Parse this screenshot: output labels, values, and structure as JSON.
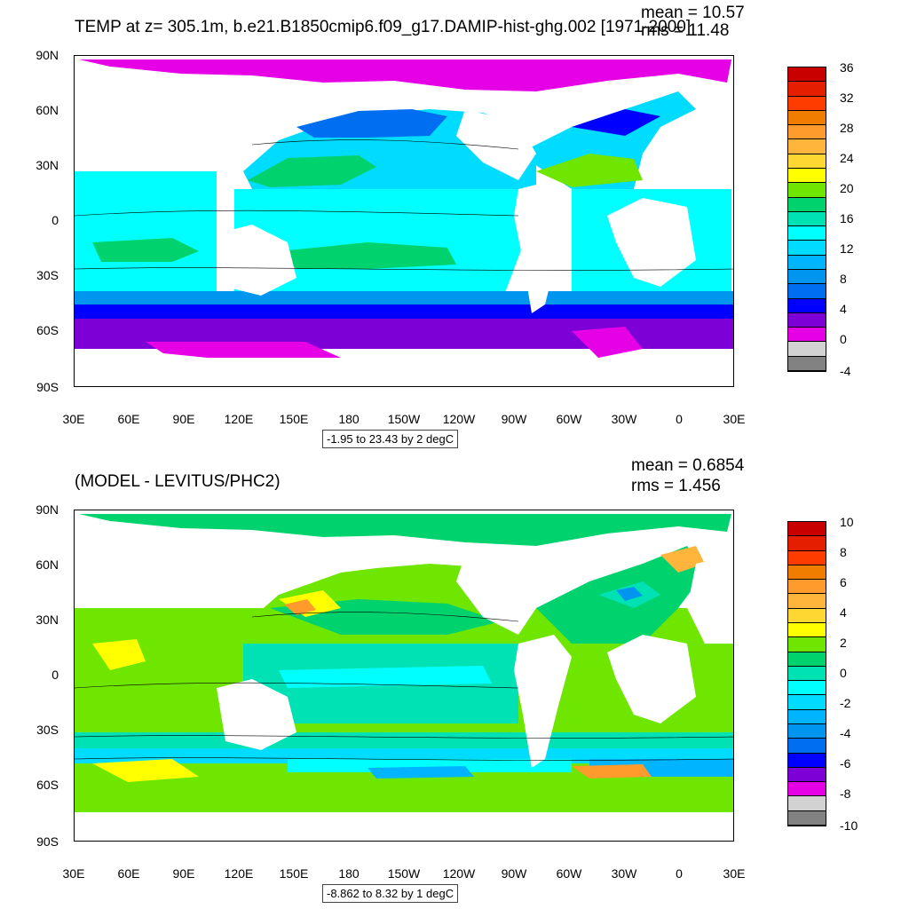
{
  "top": {
    "title": "TEMP at z= 305.1m, b.e21.B1850cmip6.f09_g17.DAMIP-hist-ghg.002 [1971-2000]",
    "mean_text": "mean = 10.57",
    "rms_text": "rms = 11.48",
    "range_text": "-1.95 to 23.43 by 2 degC",
    "colorbar": {
      "labels": [
        "36",
        "32",
        "28",
        "24",
        "20",
        "16",
        "12",
        "8",
        "4",
        "0",
        "-4"
      ],
      "colors": [
        "#c80000",
        "#e61e00",
        "#ff3c00",
        "#f07d00",
        "#ff9b2d",
        "#ffb43c",
        "#ffd732",
        "#ffff00",
        "#6ee600",
        "#00d26e",
        "#00e1b4",
        "#00ffff",
        "#00dcff",
        "#00b4ff",
        "#0096f0",
        "#006ef0",
        "#0000ff",
        "#7d00d7",
        "#e600e6",
        "#d2d2d2",
        "#828282"
      ]
    }
  },
  "bottom": {
    "title": "(MODEL - LEVITUS/PHC2)",
    "mean_text": "mean = 0.6854",
    "rms_text": "rms = 1.456",
    "range_text": "-8.862 to 8.32 by 1 degC",
    "colorbar": {
      "labels": [
        "10",
        "8",
        "6",
        "4",
        "2",
        "0",
        "-2",
        "-4",
        "-6",
        "-8",
        "-10"
      ],
      "colors": [
        "#c80000",
        "#e61e00",
        "#ff3c00",
        "#f07d00",
        "#ff9b2d",
        "#ffb43c",
        "#ffd732",
        "#ffff00",
        "#6ee600",
        "#00d26e",
        "#00e1b4",
        "#00ffff",
        "#00dcff",
        "#00b4ff",
        "#0096f0",
        "#006ef0",
        "#0000ff",
        "#7d00d7",
        "#e600e6",
        "#d2d2d2",
        "#828282"
      ]
    }
  },
  "axes": {
    "lat_labels": [
      "90N",
      "60N",
      "30N",
      "0",
      "30S",
      "60S",
      "90S"
    ],
    "lon_labels": [
      "30E",
      "60E",
      "90E",
      "120E",
      "150E",
      "180",
      "150W",
      "120W",
      "90W",
      "60W",
      "30W",
      "0",
      "30E"
    ]
  }
}
